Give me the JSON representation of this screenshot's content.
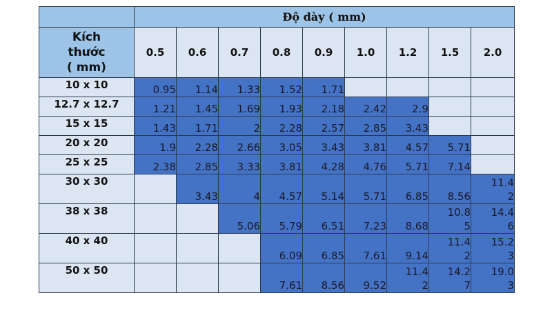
{
  "table": {
    "group_header": "Độ dày ( mm)",
    "size_header": [
      "Kích",
      "thước",
      "( mm)"
    ],
    "thickness_columns": [
      "0.5",
      "0.6",
      "0.7",
      "0.8",
      "0.9",
      "1.0",
      "1.2",
      "1.5",
      "2.0"
    ],
    "rows": [
      {
        "size": "10 x 10",
        "values": [
          "0.95",
          "1.14",
          "1.33",
          "1.52",
          "1.71",
          "",
          "",
          "",
          ""
        ]
      },
      {
        "size": "12.7 x 12.7",
        "values": [
          "1.21",
          "1.45",
          "1.69",
          "1.93",
          "2.18",
          "2.42",
          "2.9",
          "",
          ""
        ]
      },
      {
        "size": "15 x 15",
        "values": [
          "1.43",
          "1.71",
          "2",
          "2.28",
          "2.57",
          "2.85",
          "3.43",
          "",
          ""
        ]
      },
      {
        "size": "20 x 20",
        "values": [
          "1.9",
          "2.28",
          "2.66",
          "3.05",
          "3.43",
          "3.81",
          "4.57",
          "5.71",
          ""
        ]
      },
      {
        "size": "25 x 25",
        "values": [
          "2.38",
          "2.85",
          "3.33",
          "3.81",
          "4.28",
          "4.76",
          "5.71",
          "7.14",
          ""
        ]
      },
      {
        "size": "30 x 30",
        "values": [
          "",
          "3.43",
          "4",
          "4.57",
          "5.14",
          "5.71",
          "6.85",
          "8.56",
          "11.42"
        ]
      },
      {
        "size": "38 x 38",
        "values": [
          "",
          "",
          "5.06",
          "5.79",
          "6.51",
          "7.23",
          "8.68",
          "10.85",
          "14.46"
        ]
      },
      {
        "size": "40 x 40",
        "values": [
          "",
          "",
          "",
          "6.09",
          "6.85",
          "7.61",
          "9.14",
          "11.42",
          "15.23"
        ]
      },
      {
        "size": "50 x 50",
        "values": [
          "",
          "",
          "",
          "7.61",
          "8.56",
          "9.52",
          "11.42",
          "14.27",
          "19.03"
        ]
      }
    ],
    "colors": {
      "header_blue": "#9dc3e6",
      "light_cell": "#dce6f2",
      "filled_cell": "#4472c4",
      "border": "#2e3a4a"
    }
  }
}
